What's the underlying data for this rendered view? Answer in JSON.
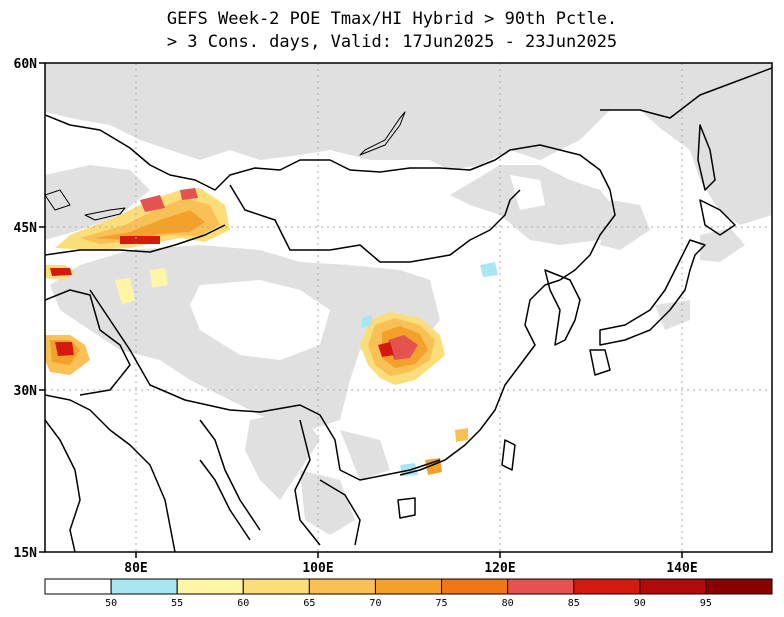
{
  "title": {
    "line1": "GEFS Week-2 POE Tmax/HI Hybrid > 90th Pctle.",
    "line2": "> 3 Cons. days, Valid: 17Jun2025 - 23Jun2025"
  },
  "axes": {
    "lat_labels": [
      "60N",
      "45N",
      "30N",
      "15N"
    ],
    "lon_labels": [
      "80E",
      "100E",
      "120E",
      "140E"
    ],
    "lon_range": [
      70,
      150
    ],
    "lat_range": [
      15,
      60
    ]
  },
  "legend": {
    "labels": [
      "50",
      "55",
      "60",
      "65",
      "70",
      "75",
      "80",
      "85",
      "90",
      "95"
    ],
    "colors": [
      "#ffffff",
      "#a9e6f0",
      "#fff5a6",
      "#fbde79",
      "#f9c055",
      "#f4a12b",
      "#f07617",
      "#e4534f",
      "#d41a0e",
      "#b10a0a",
      "#8a0000"
    ]
  },
  "colors": {
    "land_shade": "#e0e0e0",
    "border": "#000000",
    "grid": "#aaaaaa"
  }
}
